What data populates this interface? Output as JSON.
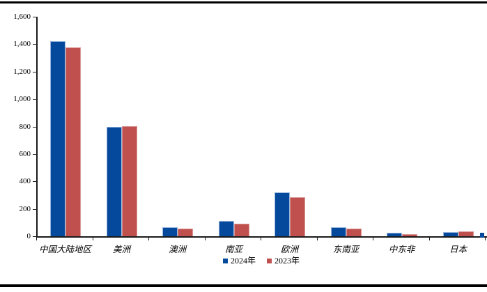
{
  "page": {
    "background": "#ffffff",
    "top_rule_color": "#000000",
    "bottom_rule_color": "#000000",
    "axis_color": "#1a1a1a"
  },
  "chart_data": {
    "type": "bar",
    "title": "",
    "xlabel": "",
    "ylabel": "",
    "categories": [
      "中国大陆地区",
      "美洲",
      "澳洲",
      "南亚",
      "欧洲",
      "东南亚",
      "中东非",
      "日本"
    ],
    "series": [
      {
        "name": "2024年",
        "color": "#05499c",
        "border_color": "#9ab7dd",
        "values": [
          1420,
          795,
          65,
          112,
          318,
          64,
          26,
          31
        ]
      },
      {
        "name": "2023年",
        "color": "#c0504d",
        "border_color": "#d99694",
        "values": [
          1378,
          800,
          58,
          93,
          282,
          55,
          16,
          36
        ]
      }
    ],
    "ylim": [
      0,
      1600
    ],
    "ytick_interval": 200,
    "ytick_labels": [
      "0",
      "200",
      "400",
      "600",
      "800",
      "1,000",
      "1,200",
      "1,400",
      "1,600"
    ],
    "grid": false,
    "legend_position": "bottom-center",
    "legend_entries": [
      "2024年",
      "2023年"
    ],
    "notes": "small cropped blue bar fragment visible at right edge of x-axis"
  }
}
